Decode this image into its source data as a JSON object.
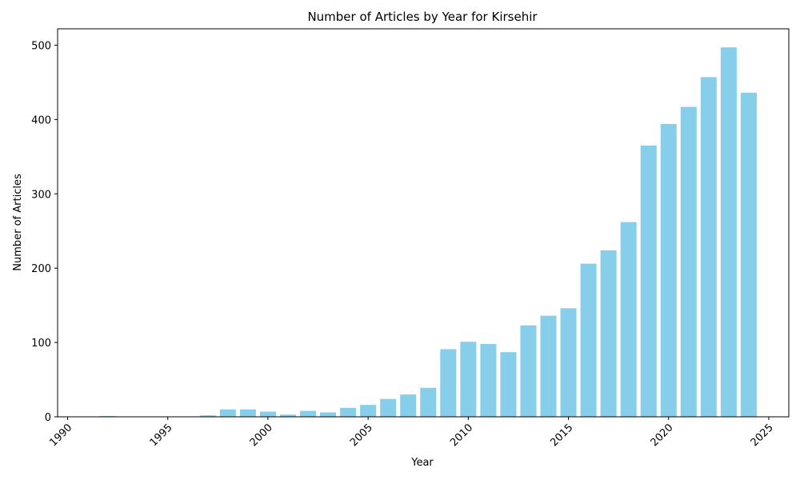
{
  "chart_data": {
    "type": "bar",
    "title": "Number of Articles by Year for Kirsehir",
    "xlabel": "Year",
    "ylabel": "Number of Articles",
    "x": [
      1992,
      1997,
      1998,
      1999,
      2000,
      2001,
      2002,
      2003,
      2004,
      2005,
      2006,
      2007,
      2008,
      2009,
      2010,
      2011,
      2012,
      2013,
      2014,
      2015,
      2016,
      2017,
      2018,
      2019,
      2020,
      2021,
      2022,
      2023,
      2024
    ],
    "values": [
      1,
      2,
      10,
      10,
      7,
      3,
      8,
      6,
      12,
      16,
      24,
      30,
      39,
      91,
      101,
      98,
      87,
      123,
      136,
      146,
      206,
      224,
      262,
      365,
      394,
      417,
      457,
      497,
      436
    ],
    "xlim": [
      1989.5,
      2026
    ],
    "ylim": [
      0,
      522
    ],
    "xticks": [
      1990,
      1995,
      2000,
      2005,
      2010,
      2015,
      2020,
      2025
    ],
    "yticks": [
      0,
      100,
      200,
      300,
      400,
      500
    ],
    "bar_color": "#87CEEB",
    "grid": false,
    "legend": "none"
  }
}
